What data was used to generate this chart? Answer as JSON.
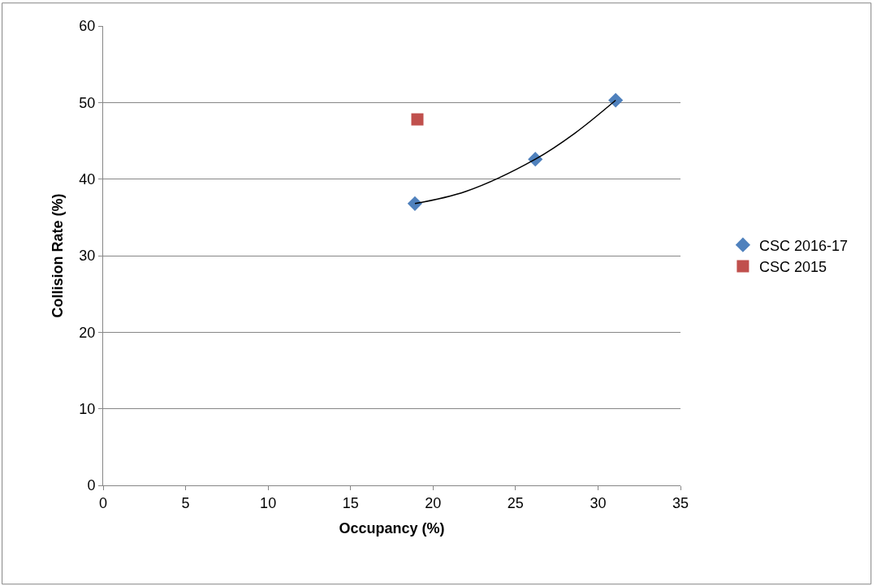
{
  "chart_data": {
    "type": "scatter",
    "xlabel": "Occupancy (%)",
    "ylabel": "Collision Rate (%)",
    "xlim": [
      0,
      35
    ],
    "xticks": [
      0,
      5,
      10,
      15,
      20,
      25,
      30,
      35
    ],
    "ylim": [
      0,
      60
    ],
    "yticks": [
      0,
      10,
      20,
      30,
      40,
      50,
      60
    ],
    "grid": "y",
    "legend": "right",
    "series": [
      {
        "name": "CSC 2016-17",
        "color": "#4f81bd",
        "marker": "diamond",
        "x": [
          18.9,
          26.2,
          31.07
        ],
        "values": [
          36.8,
          42.6,
          50.3
        ]
      },
      {
        "name": "CSC 2015",
        "color": "#c0504d",
        "marker": "square",
        "x": [
          19.05
        ],
        "values": [
          47.8
        ]
      },
      {
        "type": "line",
        "color": "#000000",
        "marker": "none",
        "x": [
          18.9,
          22,
          26.2,
          28.6,
          31.07
        ],
        "values": [
          36.8,
          38.4,
          42.6,
          46.0,
          50.3
        ]
      }
    ]
  }
}
